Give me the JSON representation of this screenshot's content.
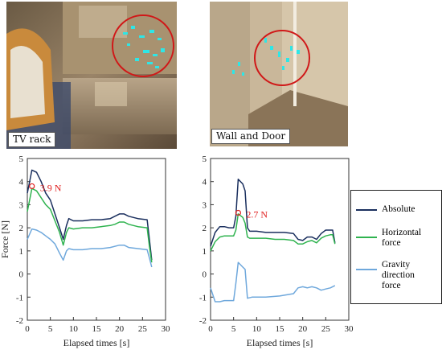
{
  "photos": [
    {
      "label": "TV rack"
    },
    {
      "label": "Wall and Door"
    }
  ],
  "colors": {
    "absolute": "#1a2f5e",
    "horizontal": "#2fb34f",
    "gravity": "#6fa8dc",
    "annotation": "#e02020"
  },
  "legend": {
    "absolute": "Absolute",
    "horizontal": "Horizontal\nforce",
    "gravity": "Gravity\ndirection\nforce"
  },
  "chart_data": [
    {
      "type": "line",
      "title": "",
      "xlabel": "Elapsed times [s]",
      "ylabel": "Force [N]",
      "xlim": [
        0,
        30
      ],
      "ylim": [
        -2,
        5
      ],
      "xticks": [
        0,
        5,
        10,
        15,
        20,
        25,
        30
      ],
      "yticks": [
        -2,
        -1,
        0,
        1,
        2,
        3,
        4,
        5
      ],
      "annotation": {
        "text": "3.9 N",
        "x": 1.0,
        "y": 3.8
      },
      "series": [
        {
          "name": "Absolute",
          "key": "absolute",
          "points": [
            [
              0,
              3.5
            ],
            [
              1,
              4.5
            ],
            [
              2,
              4.4
            ],
            [
              3,
              4.0
            ],
            [
              4,
              3.5
            ],
            [
              5,
              3.2
            ],
            [
              6,
              2.6
            ],
            [
              7,
              2.0
            ],
            [
              7.8,
              1.5
            ],
            [
              8.5,
              2.1
            ],
            [
              9,
              2.4
            ],
            [
              10,
              2.3
            ],
            [
              12,
              2.3
            ],
            [
              14,
              2.35
            ],
            [
              16,
              2.35
            ],
            [
              18,
              2.4
            ],
            [
              19,
              2.5
            ],
            [
              20,
              2.6
            ],
            [
              21,
              2.6
            ],
            [
              22,
              2.5
            ],
            [
              24,
              2.4
            ],
            [
              26,
              2.35
            ],
            [
              26.5,
              1.5
            ],
            [
              27,
              0.6
            ]
          ]
        },
        {
          "name": "Horizontal force",
          "key": "horizontal",
          "points": [
            [
              0,
              2.7
            ],
            [
              1,
              3.7
            ],
            [
              2,
              3.6
            ],
            [
              3,
              3.3
            ],
            [
              4,
              3.0
            ],
            [
              5,
              2.8
            ],
            [
              6,
              2.3
            ],
            [
              7,
              1.8
            ],
            [
              7.8,
              1.25
            ],
            [
              8.5,
              1.8
            ],
            [
              9,
              2.0
            ],
            [
              10,
              1.95
            ],
            [
              12,
              2.0
            ],
            [
              14,
              2.0
            ],
            [
              16,
              2.05
            ],
            [
              18,
              2.1
            ],
            [
              19,
              2.15
            ],
            [
              20,
              2.25
            ],
            [
              21,
              2.25
            ],
            [
              22,
              2.15
            ],
            [
              24,
              2.05
            ],
            [
              26,
              2.0
            ],
            [
              26.5,
              1.2
            ],
            [
              27,
              0.5
            ]
          ]
        },
        {
          "name": "Gravity direction force",
          "key": "gravity",
          "points": [
            [
              0,
              1.5
            ],
            [
              1,
              1.95
            ],
            [
              2,
              1.9
            ],
            [
              3,
              1.8
            ],
            [
              4,
              1.65
            ],
            [
              5,
              1.5
            ],
            [
              6,
              1.3
            ],
            [
              7,
              0.9
            ],
            [
              7.8,
              0.6
            ],
            [
              8.5,
              1.0
            ],
            [
              9,
              1.1
            ],
            [
              10,
              1.05
            ],
            [
              12,
              1.05
            ],
            [
              14,
              1.1
            ],
            [
              16,
              1.1
            ],
            [
              18,
              1.15
            ],
            [
              20,
              1.25
            ],
            [
              21,
              1.25
            ],
            [
              22,
              1.15
            ],
            [
              24,
              1.1
            ],
            [
              26,
              1.05
            ],
            [
              26.5,
              0.7
            ],
            [
              27,
              0.3
            ]
          ]
        }
      ]
    },
    {
      "type": "line",
      "title": "",
      "xlabel": "Elapsed times [s]",
      "ylabel": "",
      "xlim": [
        0,
        30
      ],
      "ylim": [
        -2,
        5
      ],
      "xticks": [
        0,
        5,
        10,
        15,
        20,
        25,
        30
      ],
      "yticks": [
        -2,
        -1,
        0,
        1,
        2,
        3,
        4,
        5
      ],
      "annotation": {
        "text": "2.7 N",
        "x": 6.0,
        "y": 2.65
      },
      "series": [
        {
          "name": "Absolute",
          "key": "absolute",
          "points": [
            [
              0,
              1.2
            ],
            [
              1,
              1.8
            ],
            [
              2,
              2.05
            ],
            [
              3,
              2.05
            ],
            [
              4,
              2.0
            ],
            [
              5,
              2.0
            ],
            [
              5.5,
              2.5
            ],
            [
              6,
              4.1
            ],
            [
              7,
              3.9
            ],
            [
              7.5,
              3.6
            ],
            [
              8,
              2.0
            ],
            [
              8.5,
              1.85
            ],
            [
              10,
              1.85
            ],
            [
              12,
              1.8
            ],
            [
              14,
              1.8
            ],
            [
              16,
              1.8
            ],
            [
              18,
              1.75
            ],
            [
              19,
              1.5
            ],
            [
              20,
              1.45
            ],
            [
              21,
              1.6
            ],
            [
              22,
              1.6
            ],
            [
              23,
              1.5
            ],
            [
              24,
              1.75
            ],
            [
              25,
              1.9
            ],
            [
              26,
              1.9
            ],
            [
              26.5,
              1.9
            ],
            [
              27,
              1.35
            ]
          ]
        },
        {
          "name": "Horizontal force",
          "key": "horizontal",
          "points": [
            [
              0,
              1.0
            ],
            [
              1,
              1.4
            ],
            [
              2,
              1.6
            ],
            [
              3,
              1.65
            ],
            [
              4,
              1.65
            ],
            [
              5,
              1.65
            ],
            [
              5.5,
              1.9
            ],
            [
              6,
              2.6
            ],
            [
              7,
              2.45
            ],
            [
              7.5,
              2.2
            ],
            [
              8,
              1.6
            ],
            [
              8.5,
              1.55
            ],
            [
              10,
              1.55
            ],
            [
              12,
              1.55
            ],
            [
              14,
              1.5
            ],
            [
              16,
              1.5
            ],
            [
              18,
              1.45
            ],
            [
              19,
              1.3
            ],
            [
              20,
              1.3
            ],
            [
              21,
              1.4
            ],
            [
              22,
              1.45
            ],
            [
              23,
              1.35
            ],
            [
              24,
              1.55
            ],
            [
              25,
              1.65
            ],
            [
              26,
              1.7
            ],
            [
              26.5,
              1.7
            ],
            [
              27,
              1.3
            ]
          ]
        },
        {
          "name": "Gravity direction force",
          "key": "gravity",
          "points": [
            [
              0,
              -0.6
            ],
            [
              1,
              -1.2
            ],
            [
              2,
              -1.2
            ],
            [
              3,
              -1.15
            ],
            [
              4,
              -1.15
            ],
            [
              5,
              -1.15
            ],
            [
              5.5,
              -0.4
            ],
            [
              6,
              0.5
            ],
            [
              6.5,
              0.4
            ],
            [
              7,
              0.3
            ],
            [
              7.5,
              0.2
            ],
            [
              8,
              -1.05
            ],
            [
              9,
              -1.0
            ],
            [
              12,
              -1.0
            ],
            [
              15,
              -0.95
            ],
            [
              18,
              -0.85
            ],
            [
              19,
              -0.6
            ],
            [
              20,
              -0.55
            ],
            [
              21,
              -0.6
            ],
            [
              22,
              -0.55
            ],
            [
              23,
              -0.6
            ],
            [
              24,
              -0.7
            ],
            [
              25,
              -0.65
            ],
            [
              26,
              -0.6
            ],
            [
              27,
              -0.5
            ]
          ]
        }
      ]
    }
  ]
}
